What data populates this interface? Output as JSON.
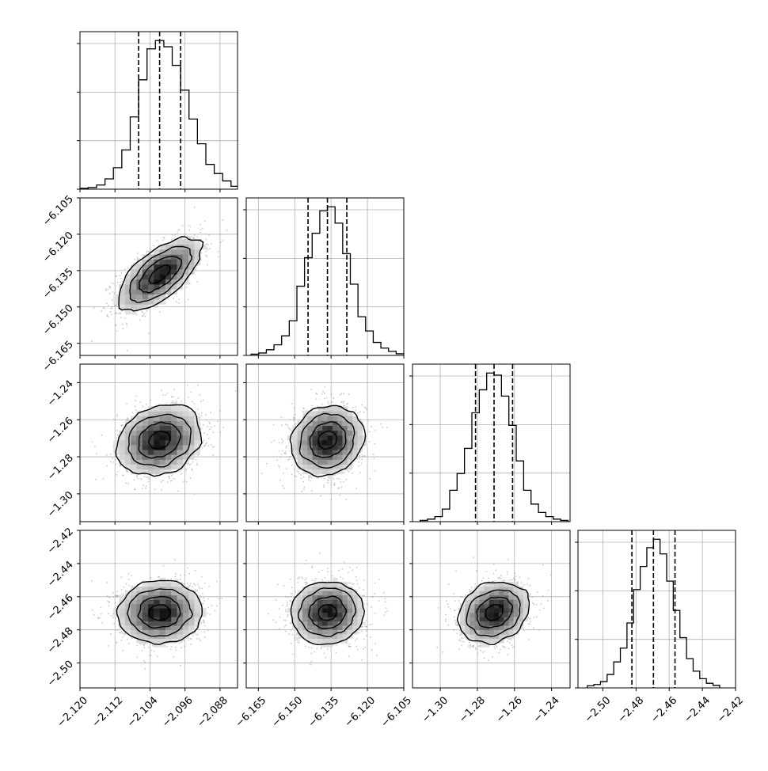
{
  "chart_data": {
    "type": "corner",
    "parameters": [
      {
        "name": "",
        "range": [
          -2.12,
          -2.084
        ],
        "ticks": [
          -2.12,
          -2.112,
          -2.104,
          -2.096,
          -2.088
        ],
        "tick_labels": [
          "−2.120",
          "−2.112",
          "−2.104",
          "−2.096",
          "−2.088"
        ],
        "center": -2.1018,
        "sigma": 0.0048,
        "quantiles": [
          -2.1066,
          -2.1018,
          -2.097
        ],
        "hist_counts": [
          1,
          2,
          4,
          10,
          25,
          52,
          95,
          175,
          265,
          340,
          360,
          345,
          300,
          240,
          170,
          110,
          60,
          38,
          20,
          7,
          3
        ]
      },
      {
        "name": "",
        "range": [
          -6.17,
          -6.105
        ],
        "ticks": [
          -6.165,
          -6.15,
          -6.135,
          -6.12,
          -6.105
        ],
        "tick_labels": [
          "−6.165",
          "−6.150",
          "−6.135",
          "−6.120",
          "−6.105"
        ],
        "center": -6.1365,
        "sigma": 0.0075,
        "quantiles": [
          -6.1445,
          -6.1365,
          -6.1285
        ],
        "hist_counts": [
          3,
          6,
          14,
          26,
          48,
          85,
          170,
          240,
          300,
          355,
          365,
          325,
          250,
          175,
          95,
          60,
          32,
          18,
          10,
          4
        ]
      },
      {
        "name": "",
        "range": [
          -1.315,
          -1.23
        ],
        "ticks": [
          -1.3,
          -1.28,
          -1.26,
          -1.24
        ],
        "tick_labels": [
          "−1.30",
          "−1.28",
          "−1.26",
          "−1.24"
        ],
        "center": -1.271,
        "sigma": 0.0095,
        "quantiles": [
          -1.281,
          -1.271,
          -1.261
        ],
        "hist_counts": [
          3,
          6,
          12,
          30,
          75,
          115,
          175,
          260,
          315,
          355,
          350,
          300,
          230,
          145,
          75,
          42,
          22,
          12,
          6,
          3
        ]
      },
      {
        "name": "",
        "range": [
          -2.515,
          -2.42
        ],
        "ticks": [
          -2.5,
          -2.48,
          -2.46,
          -2.44,
          -2.42
        ],
        "tick_labels": [
          "−2.50",
          "−2.48",
          "−2.46",
          "−2.44",
          "−2.42"
        ],
        "center": -2.4695,
        "sigma": 0.0095,
        "quantiles": [
          -2.4825,
          -2.4695,
          -2.4565
        ],
        "hist_counts": [
          5,
          8,
          15,
          32,
          62,
          95,
          155,
          235,
          290,
          335,
          355,
          320,
          255,
          185,
          120,
          70,
          40,
          22,
          11,
          6
        ]
      }
    ],
    "correlations": [
      [
        1,
        0.65,
        0.18,
        0.05
      ],
      [
        0.65,
        1,
        0.12,
        0.05
      ],
      [
        0.18,
        0.12,
        1,
        0.22
      ],
      [
        0.05,
        0.05,
        0.22,
        1
      ]
    ],
    "contour_levels": [
      0.5,
      1.0,
      1.5,
      2.0
    ],
    "grid": true,
    "colors": {
      "points": "#9a9a9a",
      "contour": "#000000",
      "hist": "#000000",
      "grid": "#b0b0b0"
    }
  }
}
